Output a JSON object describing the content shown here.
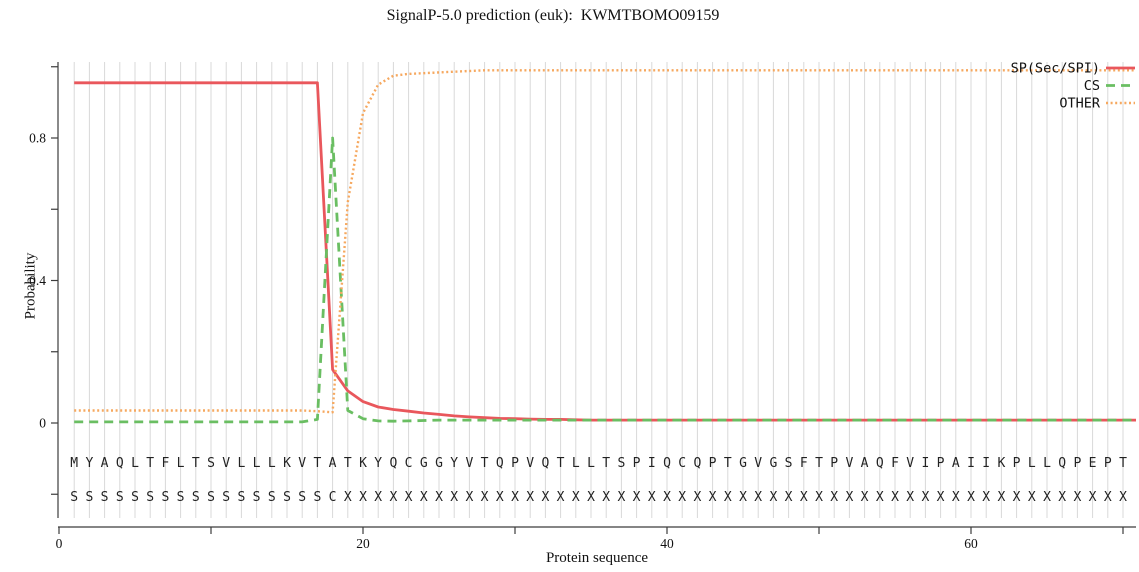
{
  "title": "SignalP-5.0 prediction (euk):  KWMTBOMO09159",
  "axes": {
    "x": {
      "label": "Protein sequence",
      "major_ticks": [
        {
          "value": 0,
          "label": "0"
        },
        {
          "value": 20,
          "label": "20"
        },
        {
          "value": 40,
          "label": "40"
        },
        {
          "value": 60,
          "label": "60"
        }
      ],
      "minor_ticks": [
        10,
        30,
        50,
        70
      ],
      "range": [
        0,
        71
      ]
    },
    "y": {
      "label": "Probability",
      "labeled_ticks": [
        {
          "value": 0,
          "label": "0"
        },
        {
          "value": 0.4,
          "label": "0.4"
        },
        {
          "value": 0.8,
          "label": "0.8"
        }
      ],
      "minor_ticks": [
        -0.2,
        0.2,
        0.6,
        1.0
      ],
      "range": [
        -0.27,
        1.02
      ]
    }
  },
  "legend": {
    "position": "top-right",
    "entries": [
      {
        "label": "SP(Sec/SPI)",
        "color": "#e9575c",
        "line_style": "solid"
      },
      {
        "label": "CS",
        "color": "#6abe62",
        "line_style": "dashed"
      },
      {
        "label": "OTHER",
        "color": "#f6a85f",
        "line_style": "dotted"
      }
    ]
  },
  "sequence": {
    "residues": "MYAQLTFLTSVLLLKVTATKYQCGGYVTQPVQTLLTSPIQCQPTGVGSFTPVAQFVIPAIIKPLLQPEPT",
    "annotation": "SSSSSSSSSSSSSSSSSCXXXXXXXXXXXXXXXXXXXXXXXXXXXXXXXXXXXXXXXXXXXXXXXXXXXX"
  },
  "colors": {
    "grid": "#d9d9d9",
    "axis": "#3c3c3c",
    "text": "#111111",
    "sequence_text": "#222222",
    "background": "#ffffff"
  },
  "chart_data": {
    "type": "line",
    "title": "SignalP-5.0 prediction (euk):  KWMTBOMO09159",
    "xlabel": "Protein sequence",
    "ylabel": "Probability",
    "xlim": [
      0,
      71
    ],
    "ylim": [
      -0.27,
      1.02
    ],
    "grid": "vertical gridline at every residue position 1-70",
    "legend_position": "top-right",
    "x": [
      1,
      2,
      3,
      4,
      5,
      6,
      7,
      8,
      9,
      10,
      11,
      12,
      13,
      14,
      15,
      16,
      17,
      18,
      19,
      20,
      21,
      22,
      23,
      24,
      25,
      26,
      27,
      28,
      29,
      30,
      31,
      32,
      33,
      34,
      35,
      36,
      37,
      38,
      39,
      40,
      41,
      42,
      43,
      44,
      45,
      46,
      47,
      48,
      49,
      50,
      51,
      52,
      53,
      54,
      55,
      56,
      57,
      58,
      59,
      60,
      61,
      62,
      63,
      64,
      65,
      66,
      67,
      68,
      69,
      70
    ],
    "series": [
      {
        "name": "SP(Sec/SPI)",
        "color": "#e9575c",
        "style": "solid",
        "values": [
          0.955,
          0.955,
          0.955,
          0.955,
          0.955,
          0.955,
          0.955,
          0.955,
          0.955,
          0.955,
          0.955,
          0.955,
          0.955,
          0.955,
          0.955,
          0.955,
          0.955,
          0.15,
          0.09,
          0.06,
          0.045,
          0.038,
          0.033,
          0.028,
          0.024,
          0.02,
          0.017,
          0.015,
          0.013,
          0.012,
          0.011,
          0.01,
          0.01,
          0.009,
          0.008,
          0.008,
          0.008,
          0.008,
          0.008,
          0.008,
          0.008,
          0.008,
          0.008,
          0.008,
          0.008,
          0.008,
          0.008,
          0.008,
          0.008,
          0.008,
          0.008,
          0.008,
          0.008,
          0.008,
          0.008,
          0.008,
          0.008,
          0.008,
          0.008,
          0.008,
          0.008,
          0.008,
          0.008,
          0.008,
          0.008,
          0.008,
          0.008,
          0.008,
          0.008,
          0.008
        ]
      },
      {
        "name": "CS",
        "color": "#6abe62",
        "style": "dashed",
        "values": [
          0.003,
          0.003,
          0.003,
          0.003,
          0.003,
          0.003,
          0.003,
          0.003,
          0.003,
          0.003,
          0.003,
          0.003,
          0.003,
          0.003,
          0.003,
          0.003,
          0.01,
          0.8,
          0.035,
          0.012,
          0.006,
          0.005,
          0.006,
          0.007,
          0.008,
          0.008,
          0.008,
          0.008,
          0.008,
          0.008,
          0.008,
          0.008,
          0.008,
          0.008,
          0.008,
          0.008,
          0.008,
          0.008,
          0.008,
          0.008,
          0.008,
          0.008,
          0.008,
          0.008,
          0.008,
          0.008,
          0.008,
          0.008,
          0.008,
          0.008,
          0.008,
          0.008,
          0.008,
          0.008,
          0.008,
          0.008,
          0.008,
          0.008,
          0.008,
          0.008,
          0.008,
          0.008,
          0.008,
          0.008,
          0.008,
          0.008,
          0.008,
          0.008,
          0.008,
          0.008
        ]
      },
      {
        "name": "OTHER",
        "color": "#f6a85f",
        "style": "dotted",
        "values": [
          0.035,
          0.035,
          0.035,
          0.035,
          0.035,
          0.035,
          0.035,
          0.035,
          0.035,
          0.035,
          0.035,
          0.035,
          0.035,
          0.035,
          0.035,
          0.035,
          0.033,
          0.03,
          0.62,
          0.87,
          0.95,
          0.975,
          0.98,
          0.982,
          0.984,
          0.986,
          0.988,
          0.99,
          0.99,
          0.99,
          0.99,
          0.99,
          0.99,
          0.99,
          0.99,
          0.99,
          0.99,
          0.99,
          0.99,
          0.99,
          0.99,
          0.99,
          0.99,
          0.99,
          0.99,
          0.99,
          0.99,
          0.99,
          0.99,
          0.99,
          0.99,
          0.99,
          0.99,
          0.99,
          0.99,
          0.99,
          0.99,
          0.99,
          0.99,
          0.99,
          0.99,
          0.99,
          0.99,
          0.99,
          0.99,
          0.99,
          0.99,
          0.99,
          0.99,
          0.99
        ]
      }
    ]
  }
}
